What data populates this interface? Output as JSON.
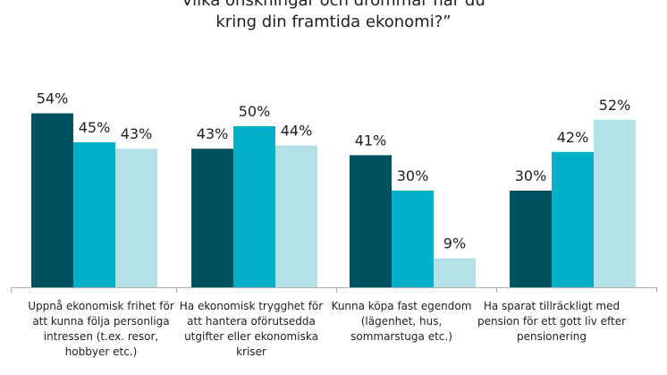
{
  "chart_data": {
    "type": "bar",
    "title_lines": [
      "Vilka önskningar och drömmar har du",
      "kring din framtida ekonomi?”"
    ],
    "categories": [
      "Uppnå ekonomisk frihet för att kunna följa personliga intressen (t.ex. resor, hobbyer etc.)",
      "Ha ekonomisk trygghet för att hantera oförutsedda utgifter eller ekonomiska kriser",
      "Kunna köpa fast egendom (lägenhet, hus, sommarstuga etc.)",
      "Ha sparat tillräckligt med pension för ett gott liv efter pensionering"
    ],
    "series": [
      {
        "values": [
          54,
          43,
          41,
          30
        ],
        "color": "#00525f"
      },
      {
        "values": [
          45,
          50,
          30,
          42
        ],
        "color": "#00afc8"
      },
      {
        "values": [
          43,
          44,
          9,
          52
        ],
        "color": "#b3e2e6"
      }
    ],
    "value_suffix": "%",
    "ylim": [
      0,
      60
    ],
    "grid": false,
    "legend": "none",
    "axis_color": "#b0b0b0",
    "label_color": "#1f1f1f"
  }
}
